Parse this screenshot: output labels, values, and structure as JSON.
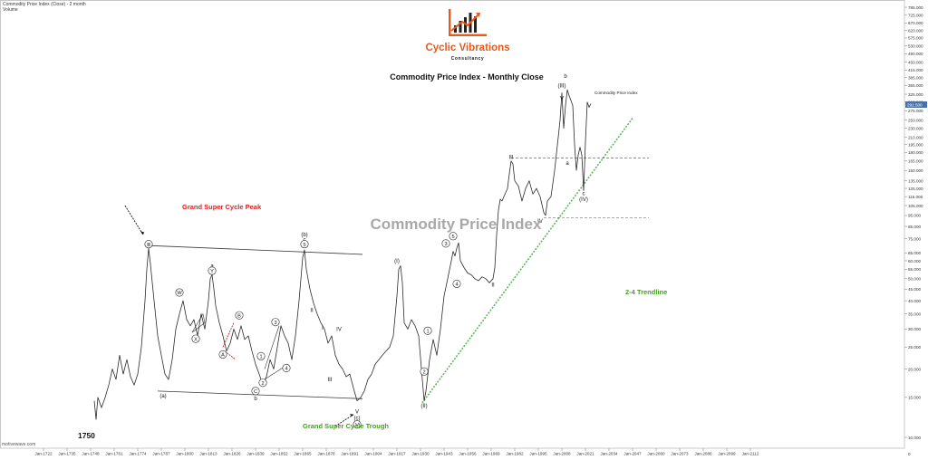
{
  "header": {
    "series_line": "Commodity Price Index (Close) - 2 month",
    "volume_label": "Volume"
  },
  "logo": {
    "name": "Cyclic Vibrations",
    "subtitle": "Consultancy",
    "brand_color": "#e85a1b"
  },
  "footer": {
    "site": "motivewave.com",
    "year_label": "1750",
    "corner_value": "0"
  },
  "colors": {
    "price_line": "#2b2b2b",
    "channel": "#3a3a3a",
    "trendline": "#5cb85c",
    "red_note": "#e02020",
    "green_note": "#4a9a2a",
    "last_price_bg": "#4a6fa5"
  },
  "annotations": {
    "peak_note": "Grand Super Cycle Peak",
    "trough_note": "Grand Super Cycle Trough",
    "trendline_note": "2-4 Trendline",
    "watermark": "Commodity Price Index",
    "series_tag": "Commodity Price Index"
  },
  "chart_data": {
    "type": "line",
    "title": "Commodity Price Index - Monthly Close",
    "y_scale": "log",
    "ylim": [
      10,
      800
    ],
    "y_ticks": [
      "10.000",
      "15.000",
      "20.000",
      "25.000",
      "30.000",
      "35.000",
      "40.000",
      "45.000",
      "50.000",
      "55.000",
      "60.000",
      "65.000",
      "75.000",
      "85.000",
      "95.000",
      "105.000",
      "115.000",
      "125.000",
      "135.000",
      "150.000",
      "165.000",
      "180.000",
      "195.000",
      "210.000",
      "230.000",
      "250.000",
      "275.000",
      "300.000",
      "325.000",
      "355.000",
      "385.000",
      "415.000",
      "450.000",
      "490.000",
      "530.000",
      "575.000",
      "620.000",
      "670.000",
      "725.000",
      "785.000"
    ],
    "x_ticks": [
      "Jan-1722",
      "Jan-1735",
      "Jan-1748",
      "Jan-1761",
      "Jan-1774",
      "Jan-1787",
      "Jan-1800",
      "Jan-1813",
      "Jan-1826",
      "Jan-1839",
      "Jan-1852",
      "Jan-1865",
      "Jan-1878",
      "Jan-1891",
      "Jan-1904",
      "Jan-1917",
      "Jan-1930",
      "Jan-1943",
      "Jan-1956",
      "Jan-1969",
      "Jan-1982",
      "Jan-1995",
      "Jan-2008",
      "Jan-2021",
      "Jan-2034",
      "Jan-2047",
      "Jan-2060",
      "Jan-2073",
      "Jan-2086",
      "Jan-2099",
      "Jan-2112"
    ],
    "last_value_label": "292.500",
    "series": [
      {
        "name": "Commodity Price Index",
        "points": [
          [
            1750,
            14.5
          ],
          [
            1751,
            12
          ],
          [
            1752,
            15
          ],
          [
            1754,
            13.5
          ],
          [
            1756,
            15
          ],
          [
            1758,
            17
          ],
          [
            1760,
            20
          ],
          [
            1762,
            18
          ],
          [
            1764,
            23
          ],
          [
            1766,
            19
          ],
          [
            1768,
            22
          ],
          [
            1770,
            18.5
          ],
          [
            1772,
            17
          ],
          [
            1774,
            19
          ],
          [
            1776,
            25
          ],
          [
            1778,
            40
          ],
          [
            1779,
            55
          ],
          [
            1780,
            68
          ],
          [
            1781,
            58
          ],
          [
            1783,
            40
          ],
          [
            1785,
            28
          ],
          [
            1787,
            23
          ],
          [
            1789,
            19
          ],
          [
            1791,
            18
          ],
          [
            1793,
            22
          ],
          [
            1795,
            30
          ],
          [
            1797,
            35
          ],
          [
            1799,
            40
          ],
          [
            1801,
            33
          ],
          [
            1803,
            31
          ],
          [
            1805,
            33
          ],
          [
            1807,
            28
          ],
          [
            1809,
            35
          ],
          [
            1811,
            30
          ],
          [
            1813,
            40
          ],
          [
            1814,
            50
          ],
          [
            1815,
            52
          ],
          [
            1816,
            45
          ],
          [
            1817,
            38
          ],
          [
            1819,
            32
          ],
          [
            1821,
            28
          ],
          [
            1823,
            24
          ],
          [
            1825,
            26
          ],
          [
            1827,
            30
          ],
          [
            1829,
            27
          ],
          [
            1831,
            31
          ],
          [
            1833,
            27
          ],
          [
            1835,
            28
          ],
          [
            1837,
            24
          ],
          [
            1839,
            21
          ],
          [
            1841,
            19
          ],
          [
            1843,
            17
          ],
          [
            1845,
            18.5
          ],
          [
            1847,
            22
          ],
          [
            1849,
            20
          ],
          [
            1851,
            25
          ],
          [
            1853,
            31
          ],
          [
            1855,
            28
          ],
          [
            1857,
            26
          ],
          [
            1859,
            22
          ],
          [
            1861,
            28
          ],
          [
            1863,
            40
          ],
          [
            1865,
            62
          ],
          [
            1866,
            67
          ],
          [
            1867,
            55
          ],
          [
            1869,
            45
          ],
          [
            1871,
            39
          ],
          [
            1873,
            35
          ],
          [
            1875,
            32
          ],
          [
            1877,
            30
          ],
          [
            1879,
            26
          ],
          [
            1881,
            28
          ],
          [
            1883,
            23
          ],
          [
            1885,
            21
          ],
          [
            1887,
            20
          ],
          [
            1889,
            18.5
          ],
          [
            1891,
            19
          ],
          [
            1893,
            16.5
          ],
          [
            1895,
            14.5
          ],
          [
            1897,
            15
          ],
          [
            1899,
            16
          ],
          [
            1901,
            18
          ],
          [
            1903,
            19
          ],
          [
            1905,
            21
          ],
          [
            1907,
            22
          ],
          [
            1909,
            23
          ],
          [
            1911,
            24
          ],
          [
            1913,
            25
          ],
          [
            1915,
            28
          ],
          [
            1917,
            42
          ],
          [
            1918,
            55
          ],
          [
            1919,
            57
          ],
          [
            1920,
            48
          ],
          [
            1921,
            32
          ],
          [
            1923,
            30
          ],
          [
            1925,
            33
          ],
          [
            1927,
            31
          ],
          [
            1929,
            28
          ],
          [
            1931,
            18
          ],
          [
            1932,
            14.5
          ],
          [
            1933,
            16
          ],
          [
            1935,
            22
          ],
          [
            1937,
            27
          ],
          [
            1939,
            23
          ],
          [
            1941,
            30
          ],
          [
            1943,
            42
          ],
          [
            1945,
            50
          ],
          [
            1947,
            60
          ],
          [
            1948,
            66
          ],
          [
            1949,
            63
          ],
          [
            1950,
            68
          ],
          [
            1951,
            72
          ],
          [
            1952,
            60
          ],
          [
            1954,
            56
          ],
          [
            1956,
            53
          ],
          [
            1958,
            52
          ],
          [
            1960,
            50
          ],
          [
            1962,
            49
          ],
          [
            1964,
            51
          ],
          [
            1966,
            50
          ],
          [
            1968,
            48
          ],
          [
            1970,
            50
          ],
          [
            1971,
            56
          ],
          [
            1972,
            78
          ],
          [
            1973,
            100
          ],
          [
            1974,
            112
          ],
          [
            1975,
            110
          ],
          [
            1976,
            115
          ],
          [
            1978,
            125
          ],
          [
            1979,
            145
          ],
          [
            1980,
            165
          ],
          [
            1981,
            160
          ],
          [
            1982,
            135
          ],
          [
            1984,
            128
          ],
          [
            1986,
            110
          ],
          [
            1988,
            125
          ],
          [
            1990,
            135
          ],
          [
            1992,
            118
          ],
          [
            1994,
            125
          ],
          [
            1996,
            115
          ],
          [
            1998,
            98
          ],
          [
            1999,
            95
          ],
          [
            2000,
            110
          ],
          [
            2002,
            115
          ],
          [
            2004,
            150
          ],
          [
            2006,
            210
          ],
          [
            2007,
            250
          ],
          [
            2008,
            330
          ],
          [
            2009,
            230
          ],
          [
            2010,
            290
          ],
          [
            2011,
            340
          ],
          [
            2012,
            320
          ],
          [
            2013,
            305
          ],
          [
            2014,
            290
          ],
          [
            2015,
            195
          ],
          [
            2016,
            150
          ],
          [
            2017,
            175
          ],
          [
            2018,
            190
          ],
          [
            2019,
            175
          ],
          [
            2020,
            122
          ],
          [
            2021,
            200
          ],
          [
            2022,
            300
          ],
          [
            2023,
            285
          ],
          [
            2024,
            295
          ]
        ]
      }
    ],
    "primary_labels": [
      {
        "text": "Ⅲ",
        "x": 1780,
        "y": 71,
        "circled": true
      },
      {
        "text": "(a)",
        "x": 1788,
        "y": 15.3
      },
      {
        "text": "W",
        "x": 1797,
        "y": 43.5,
        "circled": true
      },
      {
        "text": "X",
        "x": 1806,
        "y": 27.2,
        "circled": true
      },
      {
        "text": "a",
        "x": 1815,
        "y": 57
      },
      {
        "text": "Y",
        "x": 1815,
        "y": 54.2,
        "circled": true
      },
      {
        "text": "A",
        "x": 1821,
        "y": 23.2,
        "circled": true
      },
      {
        "text": "B",
        "x": 1830,
        "y": 34.5,
        "circled": true
      },
      {
        "text": "C",
        "x": 1839,
        "y": 16,
        "circled": true
      },
      {
        "text": "b",
        "x": 1839,
        "y": 14.9
      },
      {
        "text": "1",
        "x": 1842,
        "y": 22.8,
        "circled": true
      },
      {
        "text": "2",
        "x": 1843,
        "y": 17.4,
        "circled": true
      },
      {
        "text": "3",
        "x": 1850,
        "y": 32.2,
        "circled": true
      },
      {
        "text": "4",
        "x": 1856,
        "y": 20.2,
        "circled": true
      },
      {
        "text": "(b)",
        "x": 1866,
        "y": 78.5
      },
      {
        "text": "c",
        "x": 1866,
        "y": 74.5
      },
      {
        "text": "5",
        "x": 1866,
        "y": 71,
        "circled": true
      },
      {
        "text": "II",
        "x": 1870,
        "y": 36.5
      },
      {
        "text": "I",
        "x": 1876,
        "y": 30.5
      },
      {
        "text": "III",
        "x": 1880,
        "y": 18
      },
      {
        "text": "IV",
        "x": 1885,
        "y": 30
      },
      {
        "text": "V",
        "x": 1895,
        "y": 13
      },
      {
        "text": "(c)",
        "x": 1895,
        "y": 12.2
      },
      {
        "text": "Ⅴ",
        "x": 1895,
        "y": 11.4,
        "circled": true
      },
      {
        "text": "(I)",
        "x": 1917,
        "y": 60
      },
      {
        "text": "(II)",
        "x": 1932,
        "y": 13.8
      },
      {
        "text": "1",
        "x": 1934,
        "y": 29.5,
        "circled": true
      },
      {
        "text": "2",
        "x": 1932,
        "y": 19.5,
        "circled": true
      },
      {
        "text": "3",
        "x": 1944,
        "y": 71.5,
        "circled": true
      },
      {
        "text": "5",
        "x": 1948,
        "y": 77,
        "circled": true
      },
      {
        "text": "4",
        "x": 1950,
        "y": 47.5,
        "circled": true
      },
      {
        "text": "II",
        "x": 1970,
        "y": 47.2
      },
      {
        "text": "III",
        "x": 1980,
        "y": 172
      },
      {
        "text": "IV",
        "x": 1996,
        "y": 90
      },
      {
        "text": "(III)",
        "x": 2008,
        "y": 355
      },
      {
        "text": "b",
        "x": 2010,
        "y": 392
      },
      {
        "text": "V",
        "x": 2008,
        "y": 312
      },
      {
        "text": "a",
        "x": 2011,
        "y": 162
      },
      {
        "text": "c",
        "x": 2020,
        "y": 119
      },
      {
        "text": "(IV)",
        "x": 2020,
        "y": 112
      }
    ]
  }
}
